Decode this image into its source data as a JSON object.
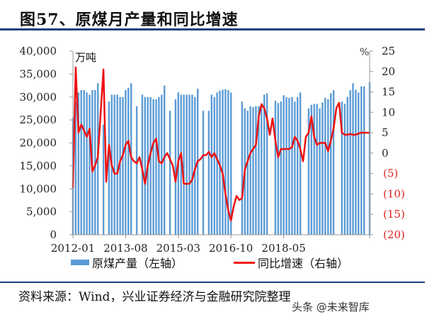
{
  "title": "图57、原煤月产量和同比增速",
  "source": "资料来源：Wind，兴业证券经济与金融研究院整理",
  "watermark": "头条 @未来智库",
  "colors": {
    "bar": "#5b9bd5",
    "line": "#ee1111",
    "rule": "#1f3f7a",
    "negative_tick": "#e02020"
  },
  "axes": {
    "left_unit": "万吨",
    "right_unit": "%",
    "left_ticks": [
      "40,000",
      "35,000",
      "30,000",
      "25,000",
      "20,000",
      "15,000",
      "10,000",
      "5,000",
      "0"
    ],
    "right_ticks": [
      "25",
      "20",
      "15",
      "10",
      "5",
      "0",
      "(5)",
      "(10)",
      "(15)",
      "(20)"
    ],
    "x_ticks": [
      "2012-01",
      "2013-08",
      "2015-03",
      "2016-10",
      "2018-05"
    ]
  },
  "legend": {
    "bar_label": "原煤产量（左轴）",
    "line_label": "同比增速（右轴）"
  },
  "chart_data": {
    "type": "bar+line",
    "title": "原煤月产量和同比增速",
    "x_start": "2012-01",
    "x_end": "2019-12",
    "xlabel": "",
    "ylabel_left": "万吨",
    "ylabel_right": "%",
    "ylim_left": [
      0,
      40000
    ],
    "ylim_right": [
      -20,
      25
    ],
    "legend_position": "bottom",
    "grid": false,
    "series": [
      {
        "name": "原煤产量（左轴）",
        "axis": "left",
        "type": "bar",
        "values": [
          25500,
          29000,
          31000,
          31500,
          31500,
          31000,
          30500,
          31500,
          31500,
          33000,
          null,
          24000,
          null,
          29000,
          30500,
          30500,
          30500,
          30000,
          30000,
          31500,
          32000,
          33000,
          null,
          28000,
          null,
          30500,
          30000,
          30000,
          30000,
          29500,
          29500,
          30000,
          30500,
          32500,
          null,
          27000,
          null,
          29500,
          31000,
          30500,
          30500,
          30500,
          30500,
          30500,
          30000,
          31800,
          null,
          27000,
          null,
          27000,
          30500,
          30000,
          31000,
          31400,
          31600,
          31700,
          31500,
          31000,
          null,
          null,
          null,
          29000,
          27500,
          27000,
          28000,
          27800,
          28000,
          28000,
          28000,
          30500,
          30800,
          null,
          null,
          29200,
          28700,
          29000,
          30400,
          30000,
          29800,
          30000,
          29000,
          30000,
          31000,
          null,
          null,
          27500,
          28300,
          28500,
          28500,
          27500,
          28800,
          29800,
          29500,
          30800,
          31500,
          null,
          null,
          29000,
          28500,
          30000,
          31500,
          33000,
          31600,
          31000,
          32300,
          32300,
          null,
          33200
        ],
        "note": "Monthly values estimated from bar heights; null = no bar (combined Jan-Feb data / gaps)"
      },
      {
        "name": "同比增速（右轴）",
        "axis": "right",
        "type": "line",
        "values": [
          -8.5,
          21,
          5,
          7,
          5.5,
          4,
          6,
          -4.5,
          -3,
          -1,
          10,
          20.5,
          -7,
          2,
          -3,
          -5,
          -5,
          -2,
          -0.5,
          2,
          3,
          -1,
          -2,
          -2.5,
          -1,
          -4,
          -7.5,
          -3,
          0,
          2.5,
          3.5,
          -2,
          -2.5,
          -1,
          0,
          -1.5,
          -3,
          -7,
          -2,
          0,
          -7.5,
          -7.5,
          -7.5,
          -6.5,
          -4,
          -2,
          -1.5,
          -0.5,
          -0.5,
          0.3,
          -1,
          0,
          -1.5,
          -3,
          -5,
          -10,
          -14,
          -16.5,
          -13,
          -10.5,
          -11.5,
          -11,
          -4,
          -2,
          0,
          1,
          2,
          9,
          12,
          11,
          8.5,
          4.5,
          8.5,
          3,
          -1,
          1,
          1,
          1,
          1,
          1.5,
          4,
          3,
          1,
          -2,
          4,
          5,
          9,
          4,
          2,
          2.5,
          2.5,
          2.5,
          0.5,
          3,
          6,
          11,
          12.3,
          5,
          4.5,
          4.5,
          4.7,
          4.5,
          4.5,
          4.8,
          5,
          5,
          5,
          5
        ],
        "note": "Estimated year-over-year growth (%) trajectory read off right axis"
      }
    ]
  }
}
